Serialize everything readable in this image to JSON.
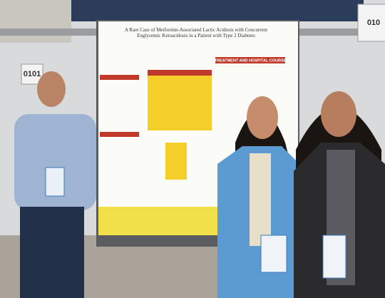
{
  "signs": {
    "left": "0101",
    "right": "010"
  },
  "poster": {
    "title": "A Rare Case of Metformin-Associated Lactic Acidosis with Concurrent Euglycemic Ketoacidosis in a Patient with Type 2 Diabetes",
    "section": "TREATMENT AND HOSPITAL COURSE"
  }
}
